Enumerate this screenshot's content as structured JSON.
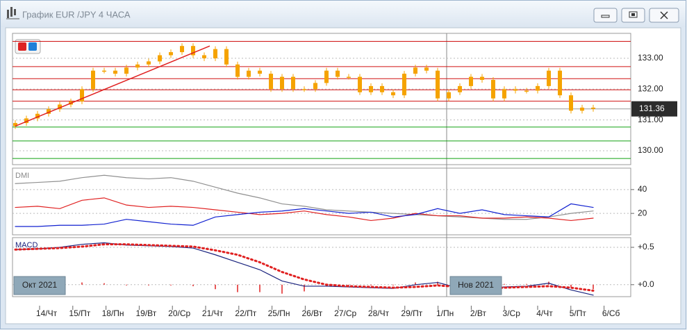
{
  "window": {
    "title": "График EUR /JPY  4 ЧАСА"
  },
  "x_axis": {
    "labels": [
      "14/Чт",
      "15/Пт",
      "18/Пн",
      "19/Вт",
      "20/Ср",
      "21/Чт",
      "22/Пт",
      "25/Пн",
      "26/Вт",
      "27/Ср",
      "28/Чт",
      "29/Пт",
      "1/Пн",
      "2/Вт",
      "3/Ср",
      "4/Чт",
      "5/Пт",
      "6/Сб"
    ],
    "months": [
      "Окт 2021",
      "Нов 2021"
    ]
  },
  "chart_data": [
    {
      "type": "candlestick",
      "color": "#f5a300",
      "opens": [
        130.8,
        130.9,
        131.05,
        131.2,
        131.35,
        131.5,
        131.6,
        132.0,
        132.6,
        132.6,
        132.5,
        132.7,
        132.8,
        132.9,
        133.1,
        133.2,
        133.4,
        133.1,
        133.0,
        133.3,
        132.8,
        132.4,
        132.6,
        132.5,
        132.0,
        132.4,
        132.0,
        132.0,
        132.2,
        132.6,
        132.4,
        132.4,
        131.9,
        132.1,
        131.9,
        131.8,
        132.5,
        132.7,
        132.6,
        131.7,
        131.9,
        132.1,
        132.4,
        132.3,
        131.7,
        132.0,
        131.95,
        131.95,
        132.1,
        132.6,
        131.8,
        131.3,
        131.4
      ],
      "closes": [
        130.9,
        131.05,
        131.2,
        131.35,
        131.5,
        131.6,
        132.0,
        132.6,
        132.6,
        132.5,
        132.7,
        132.8,
        132.9,
        133.1,
        133.2,
        133.4,
        133.1,
        133.0,
        133.3,
        132.8,
        132.4,
        132.6,
        132.5,
        132.0,
        132.4,
        132.0,
        132.0,
        132.2,
        132.6,
        132.4,
        132.4,
        131.9,
        132.1,
        131.9,
        131.8,
        132.5,
        132.7,
        132.6,
        131.7,
        131.9,
        132.1,
        132.4,
        132.3,
        131.7,
        132.0,
        131.95,
        131.95,
        132.1,
        132.6,
        131.8,
        131.3,
        131.4,
        131.36
      ],
      "ylim": [
        129.55,
        133.81
      ],
      "yticks": [
        {
          "value": 130,
          "label": "130.00"
        },
        {
          "value": 131,
          "label": "131.00"
        },
        {
          "value": 132,
          "label": "132.00"
        },
        {
          "value": 133,
          "label": "133.00"
        }
      ],
      "levels": [
        {
          "value": 133.55,
          "color": "#d01010"
        },
        {
          "value": 132.73,
          "color": "#d01010"
        },
        {
          "value": 132.34,
          "color": "#d01010"
        },
        {
          "value": 131.98,
          "color": "#d01010"
        },
        {
          "value": 131.61,
          "color": "#d01010"
        },
        {
          "value": 130.77,
          "color": "#10a010"
        },
        {
          "value": 130.32,
          "color": "#10a010"
        },
        {
          "value": 129.75,
          "color": "#10a010"
        }
      ],
      "trendline": {
        "x": [
          0,
          17.5
        ],
        "y": [
          130.8,
          133.4
        ],
        "color": "#e02020"
      },
      "last_price": 131.36
    },
    {
      "type": "line",
      "title": "DMI",
      "ylim": [
        2,
        58
      ],
      "yticks": [
        20,
        40
      ],
      "series": [
        {
          "color": "#909090",
          "style": "line",
          "values": [
            45,
            46,
            47,
            50,
            52,
            50,
            49,
            50,
            47,
            42,
            37,
            33,
            28,
            26,
            23,
            22,
            21,
            20,
            19,
            18,
            17,
            16,
            15,
            15,
            17,
            20,
            22
          ]
        },
        {
          "color": "#e02020",
          "style": "line",
          "values": [
            25,
            26,
            24,
            31,
            33,
            27,
            25,
            26,
            25,
            23,
            21,
            19,
            20,
            22,
            19,
            17,
            14,
            16,
            20,
            18,
            18,
            16,
            16,
            17,
            16,
            14,
            16
          ]
        },
        {
          "color": "#1020d0",
          "style": "line",
          "values": [
            9,
            9,
            10,
            10,
            11,
            15,
            13,
            11,
            10,
            17,
            19,
            21,
            22,
            24,
            22,
            20,
            21,
            17,
            19,
            24,
            20,
            23,
            19,
            18,
            17,
            28,
            25
          ]
        }
      ]
    },
    {
      "type": "line",
      "title": "MACD",
      "ylim": [
        -0.16,
        0.63
      ],
      "yticks": [
        {
          "value": 0.5,
          "label": "+0.5"
        },
        {
          "value": 0,
          "label": "+0.0"
        }
      ],
      "series": [
        {
          "color": "#e02020",
          "style": "bar",
          "values": [
            0,
            0,
            0.01,
            0.03,
            0.02,
            -0.01,
            -0.01,
            -0.01,
            -0.02,
            -0.06,
            -0.1,
            -0.1,
            -0.12,
            -0.09,
            -0.02,
            -0.01,
            -0.01,
            -0.01,
            0.03,
            0.04,
            -0.02,
            -0.02,
            0.01,
            0.01,
            0.04,
            -0.03,
            -0.06
          ]
        },
        {
          "color": "#1a237e",
          "style": "line",
          "values": [
            0.47,
            0.48,
            0.5,
            0.54,
            0.56,
            0.53,
            0.52,
            0.51,
            0.49,
            0.4,
            0.3,
            0.2,
            0.05,
            -0.02,
            -0.02,
            -0.03,
            -0.04,
            -0.05,
            0.0,
            0.03,
            -0.05,
            -0.06,
            -0.03,
            -0.02,
            0.02,
            -0.07,
            -0.14
          ]
        },
        {
          "color": "#e02020",
          "style": "dotted",
          "values": [
            0.47,
            0.48,
            0.49,
            0.51,
            0.54,
            0.54,
            0.53,
            0.52,
            0.51,
            0.46,
            0.4,
            0.3,
            0.17,
            0.07,
            0.0,
            -0.02,
            -0.03,
            -0.04,
            -0.03,
            -0.01,
            -0.03,
            -0.04,
            -0.04,
            -0.03,
            -0.02,
            -0.04,
            -0.08
          ]
        }
      ]
    }
  ]
}
